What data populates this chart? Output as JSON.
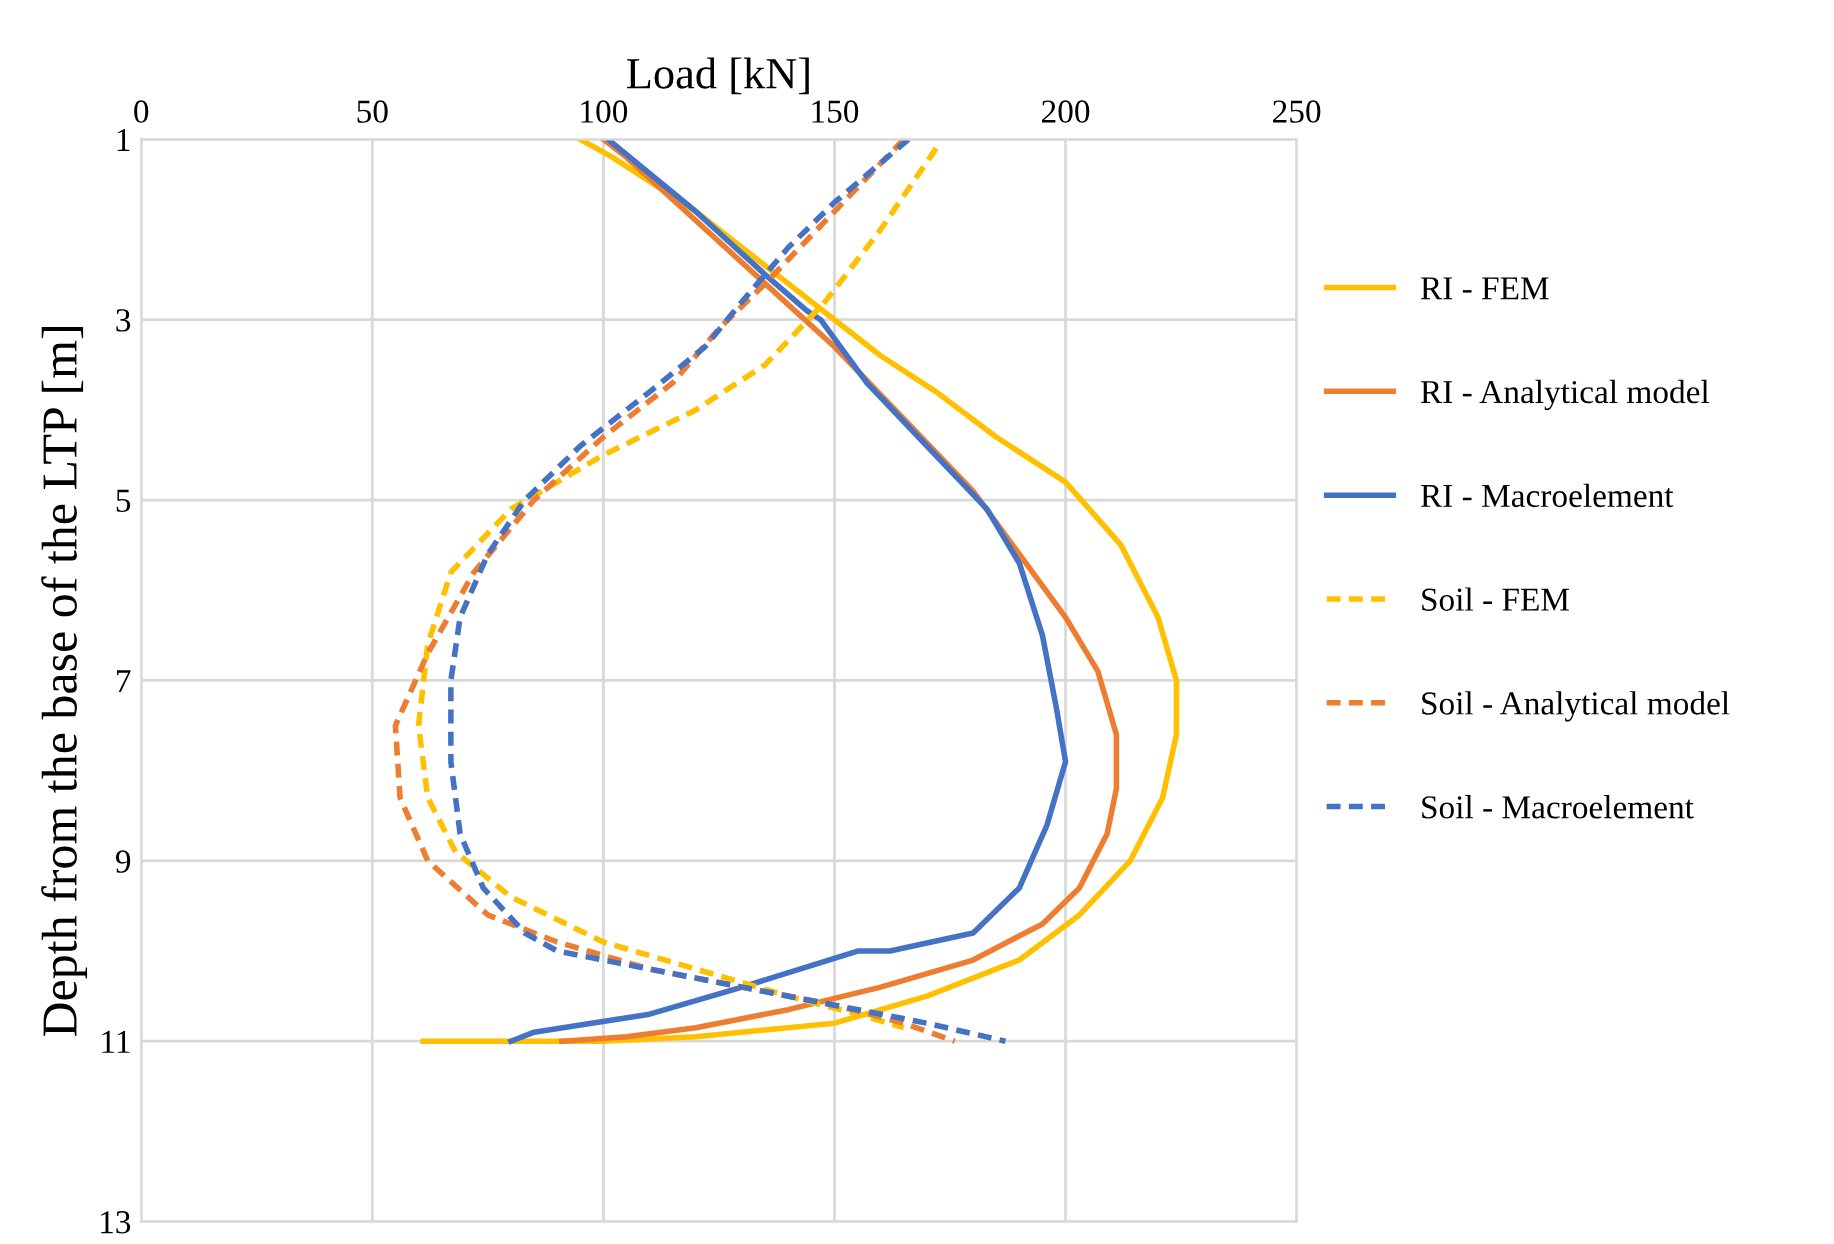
{
  "chart_data": {
    "type": "line",
    "xlabel": "Load [kN]",
    "ylabel": "Depth from the base of the LTP [m]",
    "xlim": [
      0,
      250
    ],
    "xticks": [
      0,
      50,
      100,
      150,
      200,
      250
    ],
    "ylim": [
      13,
      1
    ],
    "yticks": [
      1,
      3,
      5,
      7,
      9,
      11,
      13
    ],
    "grid": true,
    "legend": "right",
    "marker": "none",
    "series": [
      {
        "name": "RI - FEM",
        "color": "#ffc000",
        "line_style": "solid",
        "x": [
          95,
          102,
          120,
          140,
          150,
          160,
          172,
          185,
          200,
          212,
          220,
          224,
          224,
          221,
          214,
          203,
          190,
          170,
          150,
          120,
          100,
          75,
          61
        ],
        "values": [
          1,
          1.2,
          1.8,
          2.6,
          3,
          3.4,
          3.8,
          4.3,
          4.8,
          5.5,
          6.3,
          7,
          7.6,
          8.3,
          9,
          9.6,
          10.1,
          10.5,
          10.8,
          10.95,
          11,
          11,
          11
        ]
      },
      {
        "name": "RI - Analytical model",
        "color": "#ed7d31",
        "line_style": "solid",
        "x": [
          100,
          105,
          120,
          135,
          150,
          165,
          180,
          190,
          200,
          207,
          211,
          211,
          209,
          203,
          195,
          180,
          160,
          140,
          120,
          105,
          91
        ],
        "values": [
          1,
          1.2,
          1.9,
          2.6,
          3.3,
          4.1,
          4.9,
          5.6,
          6.3,
          6.9,
          7.6,
          8.2,
          8.7,
          9.3,
          9.7,
          10.1,
          10.4,
          10.65,
          10.85,
          10.95,
          11
        ]
      },
      {
        "name": "RI - Macroelement",
        "color": "#4472c4",
        "line_style": "solid",
        "x": [
          101,
          120,
          135,
          144,
          147,
          157,
          170,
          183,
          190,
          195,
          198,
          200,
          196,
          190,
          180,
          162,
          155,
          130,
          110,
          85,
          80
        ],
        "values": [
          1,
          1.8,
          2.5,
          2.9,
          3,
          3.7,
          4.4,
          5.1,
          5.7,
          6.5,
          7.3,
          7.9,
          8.6,
          9.3,
          9.8,
          10,
          10,
          10.4,
          10.7,
          10.9,
          11
        ]
      },
      {
        "name": "Soil - FEM",
        "color": "#ffc000",
        "line_style": "dashed",
        "x": [
          172,
          160,
          148,
          135,
          120,
          100,
          80,
          67,
          62,
          60,
          62,
          68,
          80,
          100,
          120,
          140,
          155,
          165
        ],
        "values": [
          1.1,
          2,
          2.8,
          3.5,
          4,
          4.5,
          5.1,
          5.8,
          6.6,
          7.5,
          8.3,
          8.9,
          9.4,
          9.9,
          10.2,
          10.5,
          10.7,
          10.85
        ]
      },
      {
        "name": "Soil - Analytical model",
        "color": "#ed7d31",
        "line_style": "dashed",
        "x": [
          165,
          150,
          135,
          125,
          115,
          100,
          85,
          72,
          62,
          55,
          56,
          62,
          75,
          90,
          110,
          130,
          150,
          165,
          176
        ],
        "values": [
          1,
          1.8,
          2.6,
          3.1,
          3.7,
          4.3,
          5,
          5.8,
          6.7,
          7.5,
          8.3,
          9,
          9.6,
          9.9,
          10.2,
          10.4,
          10.6,
          10.8,
          11
        ]
      },
      {
        "name": "Soil - Macroelement",
        "color": "#4472c4",
        "line_style": "dashed",
        "x": [
          166,
          150,
          140,
          130,
          122,
          110,
          95,
          83,
          75,
          69,
          67,
          67,
          69,
          74,
          83,
          90,
          110,
          130,
          150,
          170,
          187
        ],
        "values": [
          1,
          1.7,
          2.2,
          2.8,
          3.3,
          3.8,
          4.4,
          5,
          5.6,
          6.3,
          7,
          7.9,
          8.7,
          9.3,
          9.8,
          10,
          10.2,
          10.4,
          10.6,
          10.8,
          11
        ]
      }
    ]
  }
}
